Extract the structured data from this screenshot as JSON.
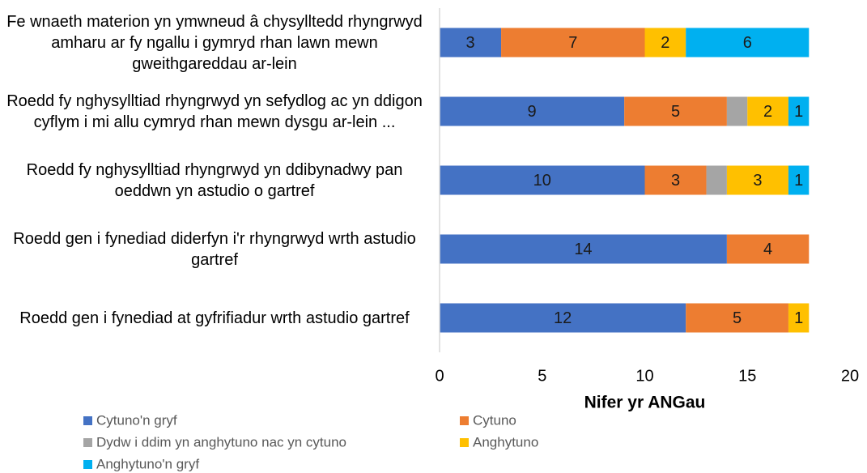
{
  "chart_data": {
    "type": "stacked_barh",
    "categories": [
      "Fe wnaeth materion yn ymwneud â chysylltedd rhyngrwyd amharu ar fy ngallu i gymryd rhan lawn mewn gweithgareddau ar-lein",
      "Roedd fy nghysylltiad rhyngrwyd yn sefydlog ac yn ddigon cyflym i mi allu cymryd rhan mewn dysgu ar-lein ...",
      "Roedd fy nghysylltiad rhyngrwyd yn ddibynadwy pan oeddwn yn astudio o gartref",
      "Roedd gen i fynediad diderfyn i'r rhyngrwyd wrth astudio gartref",
      "Roedd gen i fynediad at gyfrifiadur wrth astudio gartref"
    ],
    "series": [
      {
        "name": "Cytuno'n gryf",
        "color": "#4472c4",
        "values": [
          3,
          9,
          10,
          14,
          12
        ]
      },
      {
        "name": "Cytuno",
        "color": "#ed7d31",
        "values": [
          7,
          5,
          3,
          4,
          5
        ]
      },
      {
        "name": "Dydw i ddim yn anghytuno nac yn cytuno",
        "color": "#a5a5a5",
        "values": [
          null,
          1,
          1,
          null,
          null
        ],
        "show_labels": false
      },
      {
        "name": "Anghytuno",
        "color": "#ffc000",
        "values": [
          2,
          2,
          3,
          null,
          1
        ]
      },
      {
        "name": "Anghytuno'n gryf",
        "color": "#00b0f0",
        "values": [
          6,
          1,
          1,
          null,
          null
        ]
      }
    ],
    "xlabel": "Nifer yr ANGau",
    "xlim": [
      0,
      20
    ],
    "xticks": [
      0,
      5,
      10,
      15,
      20
    ],
    "grid": false
  }
}
